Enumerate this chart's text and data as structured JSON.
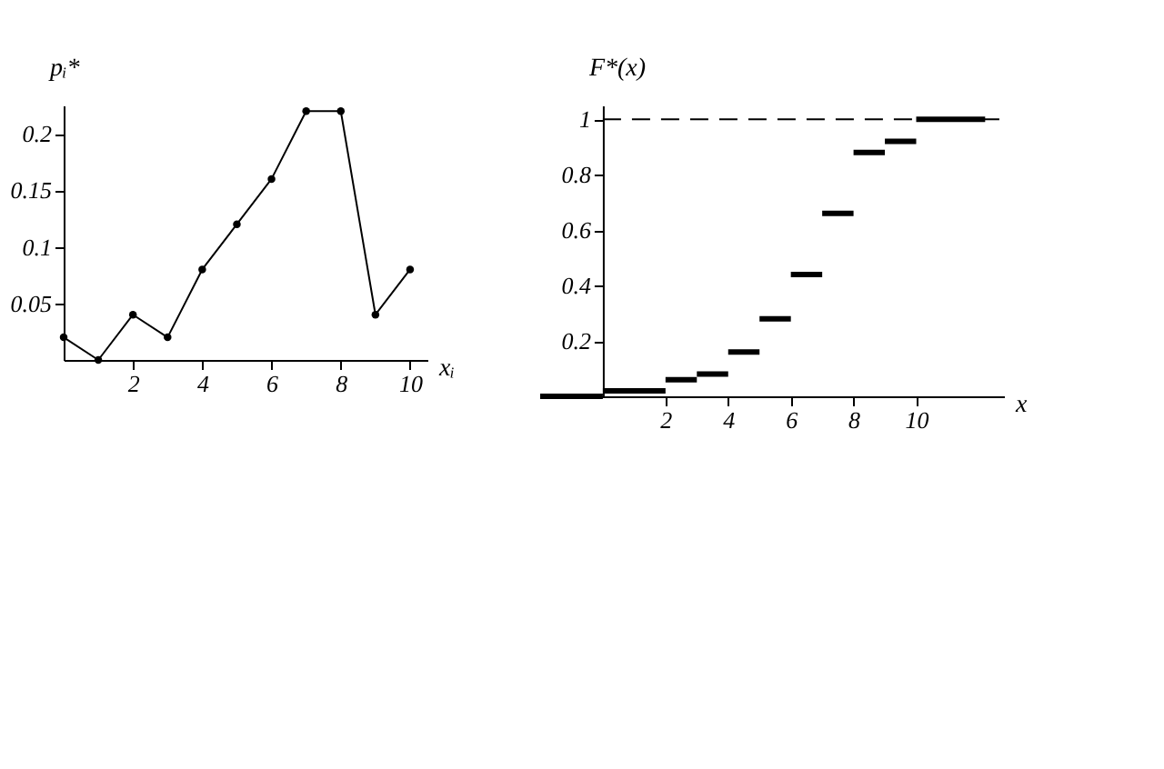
{
  "chart_data": [
    {
      "type": "line",
      "xlabel": "xᵢ",
      "ylabel": "pᵢ*",
      "x": [
        0,
        1,
        2,
        3,
        4,
        5,
        6,
        7,
        8,
        9,
        10
      ],
      "values": [
        0.02,
        0,
        0.04,
        0.02,
        0.08,
        0.12,
        0.16,
        0.22,
        0.22,
        0.04,
        0.08
      ],
      "color": "#000000",
      "marker": "circle",
      "xlim": [
        0,
        10.5
      ],
      "ylim": [
        0,
        0.225
      ],
      "xticks": [
        2,
        4,
        6,
        8,
        10
      ],
      "yticks": [
        0.05,
        0.1,
        0.15,
        0.2
      ]
    },
    {
      "type": "step",
      "xlabel": "x",
      "ylabel": "F*(x)",
      "x": [
        -2,
        0,
        2,
        3,
        4,
        5,
        6,
        7,
        8,
        9,
        10,
        12.2
      ],
      "values": [
        0,
        0.02,
        0.06,
        0.08,
        0.16,
        0.28,
        0.44,
        0.66,
        0.88,
        0.92,
        1,
        1
      ],
      "color": "#000000",
      "xlim": [
        -2,
        12.8
      ],
      "ylim": [
        0,
        1.05
      ],
      "xticks": [
        2,
        4,
        6,
        8,
        10
      ],
      "yticks": [
        0.2,
        0.4,
        0.6,
        0.8,
        1
      ],
      "ref_lines": [
        {
          "axis": "y",
          "value": 1,
          "color": "#000000",
          "line_style": "dashed"
        }
      ]
    }
  ]
}
